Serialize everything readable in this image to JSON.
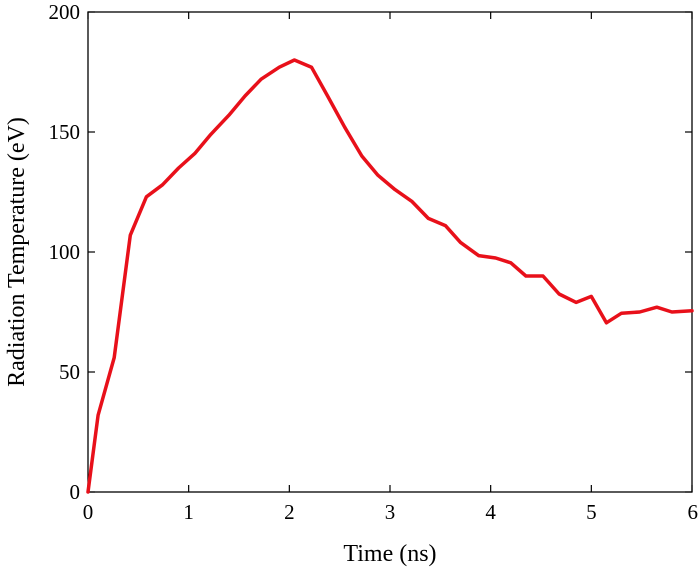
{
  "chart_data": {
    "type": "line",
    "xlabel": "Time (ns)",
    "ylabel": "Radiation Temperature (eV)",
    "xlim": [
      0,
      6
    ],
    "ylim": [
      0,
      200
    ],
    "xticks": [
      "0",
      "1",
      "2",
      "3",
      "4",
      "5",
      "6"
    ],
    "yticks": [
      "0",
      "50",
      "100",
      "150",
      "200"
    ],
    "grid": false,
    "series": [
      {
        "color": "#e8101a",
        "x": [
          0.0,
          0.1,
          0.26,
          0.42,
          0.58,
          0.74,
          0.9,
          1.06,
          1.22,
          1.4,
          1.56,
          1.72,
          1.9,
          2.05,
          2.22,
          2.38,
          2.55,
          2.72,
          2.88,
          3.05,
          3.22,
          3.38,
          3.55,
          3.7,
          3.88,
          4.05,
          4.2,
          4.35,
          4.52,
          4.68,
          4.85,
          5.0,
          5.15,
          5.3,
          5.48,
          5.65,
          5.8,
          6.0
        ],
        "values": [
          0,
          32,
          56,
          107,
          123,
          128,
          135,
          141,
          149,
          157,
          165,
          172,
          177,
          180,
          177,
          165,
          152,
          140,
          132,
          126,
          121,
          114,
          111,
          104,
          98.5,
          97.5,
          95.5,
          90,
          90,
          82.5,
          79,
          81.5,
          70.5,
          74.5,
          75,
          77,
          75,
          75.5
        ]
      }
    ]
  }
}
